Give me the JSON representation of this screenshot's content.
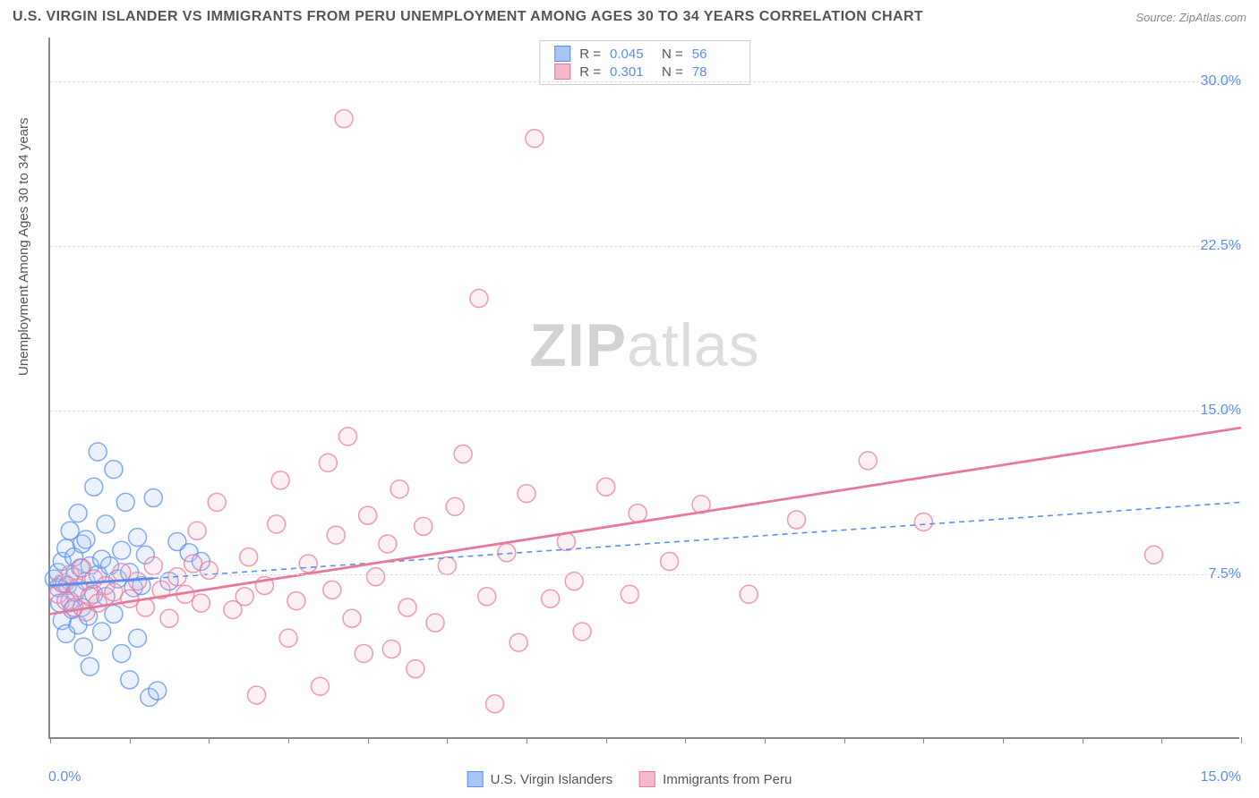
{
  "title": "U.S. VIRGIN ISLANDER VS IMMIGRANTS FROM PERU UNEMPLOYMENT AMONG AGES 30 TO 34 YEARS CORRELATION CHART",
  "source": "Source: ZipAtlas.com",
  "y_axis_label": "Unemployment Among Ages 30 to 34 years",
  "watermark_bold": "ZIP",
  "watermark_light": "atlas",
  "chart": {
    "type": "scatter-correlation",
    "xlim": [
      0,
      15
    ],
    "ylim": [
      0,
      32
    ],
    "y_ticks": [
      {
        "v": 7.5,
        "label": "7.5%"
      },
      {
        "v": 15.0,
        "label": "15.0%"
      },
      {
        "v": 22.5,
        "label": "22.5%"
      },
      {
        "v": 30.0,
        "label": "30.0%"
      }
    ],
    "x_ticks_minor": [
      0,
      1,
      2,
      3,
      4,
      5,
      6,
      7,
      8,
      9,
      10,
      11,
      12,
      13,
      14,
      15
    ],
    "x_min_label": "0.0%",
    "x_max_label": "15.0%",
    "background_color": "#ffffff",
    "grid_color": "#dddddd",
    "axis_color": "#888888",
    "marker_radius": 10,
    "marker_stroke_width": 1.5,
    "marker_fill_opacity": 0.22,
    "series": [
      {
        "key": "usvi",
        "label": "U.S. Virgin Islanders",
        "color_stroke": "#5b8def",
        "color_fill": "#a8c6f5",
        "R": "0.045",
        "N": "56",
        "trend": {
          "x1": 0,
          "y1": 7.0,
          "x2": 15,
          "y2": 10.8,
          "dash": "6,5",
          "width": 1.6,
          "solid_until_x": 1.3
        },
        "points": [
          [
            0.05,
            7.3
          ],
          [
            0.1,
            6.9
          ],
          [
            0.1,
            7.6
          ],
          [
            0.12,
            6.2
          ],
          [
            0.15,
            8.1
          ],
          [
            0.15,
            5.4
          ],
          [
            0.18,
            7.1
          ],
          [
            0.2,
            8.7
          ],
          [
            0.2,
            4.8
          ],
          [
            0.22,
            7.0
          ],
          [
            0.25,
            6.3
          ],
          [
            0.25,
            9.5
          ],
          [
            0.28,
            5.9
          ],
          [
            0.3,
            7.4
          ],
          [
            0.3,
            8.3
          ],
          [
            0.32,
            6.7
          ],
          [
            0.35,
            10.3
          ],
          [
            0.35,
            5.2
          ],
          [
            0.38,
            7.8
          ],
          [
            0.4,
            6.0
          ],
          [
            0.4,
            8.9
          ],
          [
            0.42,
            4.2
          ],
          [
            0.45,
            7.2
          ],
          [
            0.45,
            9.1
          ],
          [
            0.48,
            5.6
          ],
          [
            0.5,
            7.9
          ],
          [
            0.5,
            3.3
          ],
          [
            0.55,
            6.6
          ],
          [
            0.55,
            11.5
          ],
          [
            0.6,
            7.5
          ],
          [
            0.6,
            13.1
          ],
          [
            0.65,
            8.2
          ],
          [
            0.65,
            4.9
          ],
          [
            0.7,
            9.8
          ],
          [
            0.7,
            6.5
          ],
          [
            0.75,
            7.9
          ],
          [
            0.8,
            5.7
          ],
          [
            0.8,
            12.3
          ],
          [
            0.85,
            7.3
          ],
          [
            0.9,
            8.6
          ],
          [
            0.9,
            3.9
          ],
          [
            0.95,
            10.8
          ],
          [
            1.0,
            7.6
          ],
          [
            1.0,
            2.7
          ],
          [
            1.05,
            6.9
          ],
          [
            1.1,
            9.2
          ],
          [
            1.1,
            4.6
          ],
          [
            1.15,
            7.0
          ],
          [
            1.2,
            8.4
          ],
          [
            1.25,
            1.9
          ],
          [
            1.3,
            11.0
          ],
          [
            1.35,
            2.2
          ],
          [
            1.5,
            7.2
          ],
          [
            1.6,
            9.0
          ],
          [
            1.75,
            8.5
          ],
          [
            1.9,
            8.1
          ]
        ]
      },
      {
        "key": "peru",
        "label": "Immigrants from Peru",
        "color_stroke": "#e77a9a",
        "color_fill": "#f5b9cb",
        "R": "0.301",
        "N": "78",
        "trend": {
          "x1": 0,
          "y1": 5.7,
          "x2": 15,
          "y2": 14.2,
          "dash": "",
          "width": 2.8,
          "solid_until_x": 15
        },
        "points": [
          [
            0.1,
            6.6
          ],
          [
            0.15,
            7.1
          ],
          [
            0.2,
            6.3
          ],
          [
            0.25,
            7.5
          ],
          [
            0.3,
            6.0
          ],
          [
            0.35,
            6.9
          ],
          [
            0.4,
            7.8
          ],
          [
            0.45,
            5.8
          ],
          [
            0.5,
            6.5
          ],
          [
            0.55,
            7.3
          ],
          [
            0.6,
            6.2
          ],
          [
            0.7,
            7.0
          ],
          [
            0.8,
            6.7
          ],
          [
            0.9,
            7.6
          ],
          [
            1.0,
            6.4
          ],
          [
            1.1,
            7.2
          ],
          [
            1.2,
            6.0
          ],
          [
            1.3,
            7.9
          ],
          [
            1.4,
            6.8
          ],
          [
            1.5,
            5.5
          ],
          [
            1.6,
            7.4
          ],
          [
            1.7,
            6.6
          ],
          [
            1.8,
            8.0
          ],
          [
            1.85,
            9.5
          ],
          [
            1.9,
            6.2
          ],
          [
            2.0,
            7.7
          ],
          [
            2.1,
            10.8
          ],
          [
            2.3,
            5.9
          ],
          [
            2.45,
            6.5
          ],
          [
            2.5,
            8.3
          ],
          [
            2.6,
            2.0
          ],
          [
            2.7,
            7.0
          ],
          [
            2.85,
            9.8
          ],
          [
            2.9,
            11.8
          ],
          [
            3.0,
            4.6
          ],
          [
            3.1,
            6.3
          ],
          [
            3.25,
            8.0
          ],
          [
            3.4,
            2.4
          ],
          [
            3.5,
            12.6
          ],
          [
            3.55,
            6.8
          ],
          [
            3.6,
            9.3
          ],
          [
            3.7,
            28.3
          ],
          [
            3.75,
            13.8
          ],
          [
            3.8,
            5.5
          ],
          [
            3.95,
            3.9
          ],
          [
            4.0,
            10.2
          ],
          [
            4.1,
            7.4
          ],
          [
            4.25,
            8.9
          ],
          [
            4.3,
            4.1
          ],
          [
            4.4,
            11.4
          ],
          [
            4.5,
            6.0
          ],
          [
            4.6,
            3.2
          ],
          [
            4.7,
            9.7
          ],
          [
            4.85,
            5.3
          ],
          [
            5.0,
            7.9
          ],
          [
            5.1,
            10.6
          ],
          [
            5.2,
            13.0
          ],
          [
            5.4,
            20.1
          ],
          [
            5.5,
            6.5
          ],
          [
            5.6,
            1.6
          ],
          [
            5.75,
            8.5
          ],
          [
            5.9,
            4.4
          ],
          [
            6.0,
            11.2
          ],
          [
            6.1,
            27.4
          ],
          [
            6.3,
            6.4
          ],
          [
            6.5,
            9.0
          ],
          [
            6.6,
            7.2
          ],
          [
            6.7,
            4.9
          ],
          [
            7.0,
            11.5
          ],
          [
            7.3,
            6.6
          ],
          [
            7.4,
            10.3
          ],
          [
            7.8,
            8.1
          ],
          [
            8.2,
            10.7
          ],
          [
            8.8,
            6.6
          ],
          [
            9.4,
            10.0
          ],
          [
            10.3,
            12.7
          ],
          [
            11.0,
            9.9
          ],
          [
            13.9,
            8.4
          ]
        ]
      }
    ]
  },
  "stats_box": {
    "r_label": "R =",
    "n_label": "N ="
  }
}
